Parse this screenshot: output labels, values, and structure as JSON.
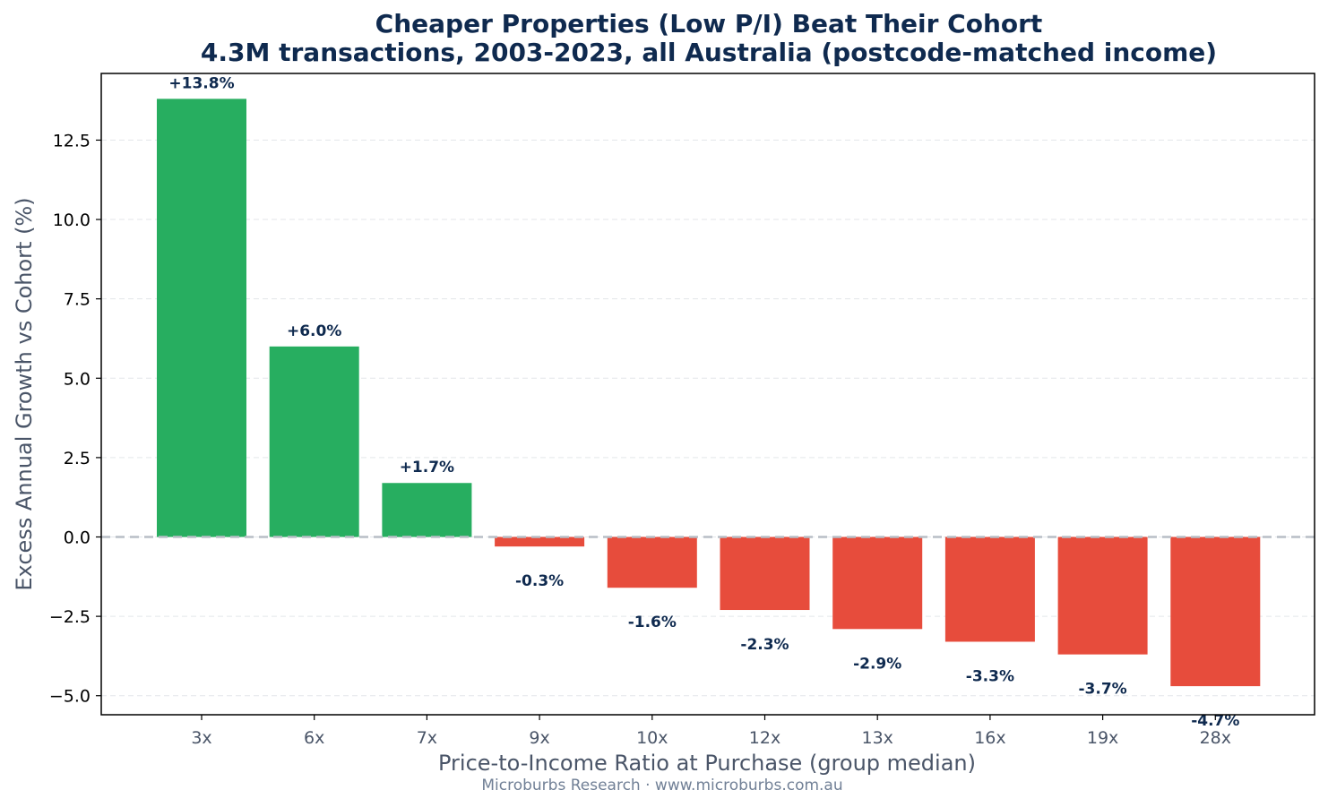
{
  "chart_data": {
    "type": "bar",
    "title": "Cheaper Properties (Low P/I) Beat Their Cohort",
    "subtitle": "4.3M transactions, 2003-2023, all Australia (postcode-matched income)",
    "xlabel": "Price-to-Income Ratio at Purchase (group median)",
    "ylabel": "Excess Annual Growth vs Cohort (%)",
    "footer": "Microburbs Research · www.microburbs.com.au",
    "categories": [
      "3x",
      "6x",
      "7x",
      "9x",
      "10x",
      "12x",
      "13x",
      "16x",
      "19x",
      "28x"
    ],
    "values": [
      13.8,
      6.0,
      1.7,
      -0.3,
      -1.6,
      -2.3,
      -2.9,
      -3.3,
      -3.7,
      -4.7
    ],
    "data_labels": [
      "+13.8%",
      "+6.0%",
      "+1.7%",
      "-0.3%",
      "-1.6%",
      "-2.3%",
      "-2.9%",
      "-3.3%",
      "-3.7%",
      "-4.7%"
    ],
    "ylim": [
      -5.6,
      14.6
    ],
    "yticks": [
      -5.0,
      -2.5,
      0.0,
      2.5,
      5.0,
      7.5,
      10.0,
      12.5
    ],
    "ytick_labels": [
      "−5.0",
      "−2.5",
      "0.0",
      "2.5",
      "5.0",
      "7.5",
      "10.0",
      "12.5"
    ],
    "grid": true,
    "zero_line": "dashed",
    "colors": {
      "positive": "#27ae60",
      "negative": "#e74c3c",
      "title": "#0f2a4f",
      "zero_line": "#b8bec6"
    }
  }
}
